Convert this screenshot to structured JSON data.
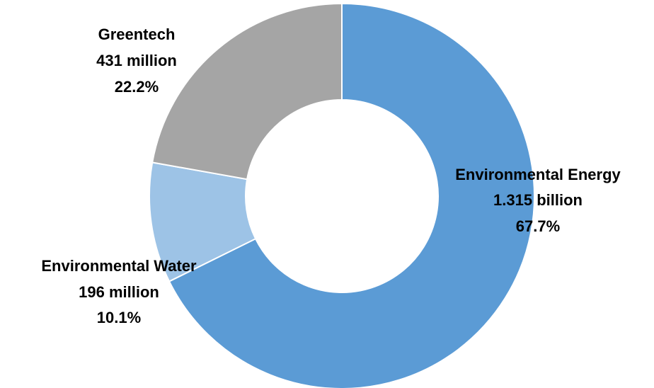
{
  "chart_data": {
    "type": "pie",
    "donut": true,
    "title": "",
    "categories": [
      "Environmental Energy",
      "Environmental Water",
      "Greentech"
    ],
    "series": [
      {
        "values": [
          1.315,
          0.196,
          0.431
        ]
      }
    ],
    "value_labels": [
      "1.315 billion",
      "196 million",
      "431 million"
    ],
    "percent_labels": [
      "67.7%",
      "10.1%",
      "22.2%"
    ],
    "percents": [
      67.7,
      10.1,
      22.2
    ],
    "colors": [
      "#5b9bd5",
      "#9dc3e6",
      "#a5a5a5"
    ],
    "legend": "none",
    "start_angle": "12 o'clock, clockwise"
  }
}
